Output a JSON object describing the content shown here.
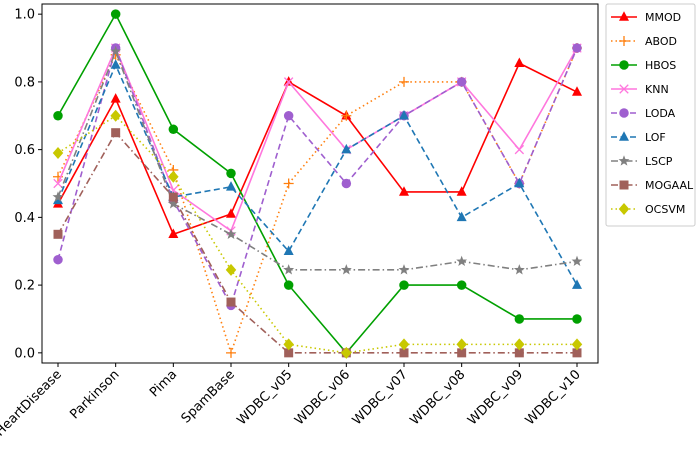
{
  "chart_data": {
    "type": "line",
    "title": "",
    "xlabel": "",
    "ylabel": "",
    "ylim": [
      -0.03,
      1.03
    ],
    "yticks": [
      "0.0",
      "0.2",
      "0.4",
      "0.6",
      "0.8",
      "1.0"
    ],
    "ytick_values": [
      0.0,
      0.2,
      0.4,
      0.6,
      0.8,
      1.0
    ],
    "categories": [
      "HeartDisease",
      "Parkinson",
      "Pima",
      "SpamBase",
      "WDBC_v05",
      "WDBC_v06",
      "WDBC_v07",
      "WDBC_v08",
      "WDBC_v09",
      "WDBC_v10"
    ],
    "legend_position": "outside-right",
    "series": [
      {
        "name": "MMOD",
        "color": "#ff0000",
        "marker": "triangle",
        "dash": "solid",
        "values": [
          0.44,
          0.75,
          0.35,
          0.41,
          0.8,
          0.7,
          0.475,
          0.475,
          0.855,
          0.77
        ]
      },
      {
        "name": "ABOD",
        "color": "#ff7f0e",
        "marker": "plus",
        "dash": "dotted",
        "values": [
          0.52,
          0.88,
          0.54,
          0.0,
          0.5,
          0.7,
          0.8,
          0.8,
          0.5,
          0.9
        ]
      },
      {
        "name": "HBOS",
        "color": "#00a000",
        "marker": "circle",
        "dash": "solid",
        "values": [
          0.7,
          1.0,
          0.66,
          0.53,
          0.2,
          0.0,
          0.2,
          0.2,
          0.1,
          0.1
        ]
      },
      {
        "name": "KNN",
        "color": "#ff77dd",
        "marker": "x",
        "dash": "solid",
        "values": [
          0.5,
          0.9,
          0.48,
          0.36,
          0.8,
          0.6,
          0.7,
          0.8,
          0.6,
          0.9
        ]
      },
      {
        "name": "LODA",
        "color": "#9f5fcf",
        "marker": "circle",
        "dash": "dashed",
        "values": [
          0.275,
          0.9,
          0.45,
          0.14,
          0.7,
          0.5,
          0.7,
          0.8,
          0.5,
          0.9
        ]
      },
      {
        "name": "LOF",
        "color": "#1f77b4",
        "marker": "triangle",
        "dash": "dashed",
        "values": [
          0.45,
          0.85,
          0.46,
          0.49,
          0.3,
          0.6,
          0.7,
          0.4,
          0.5,
          0.2
        ]
      },
      {
        "name": "LSCP",
        "color": "#808080",
        "marker": "star",
        "dash": "dashdot",
        "values": [
          0.46,
          0.89,
          0.44,
          0.35,
          0.245,
          0.245,
          0.245,
          0.27,
          0.245,
          0.27
        ]
      },
      {
        "name": "MOGAAL",
        "color": "#a0605a",
        "marker": "square",
        "dash": "dashdot",
        "values": [
          0.35,
          0.65,
          0.46,
          0.15,
          0.0,
          0.0,
          0.0,
          0.0,
          0.0,
          0.0
        ]
      },
      {
        "name": "OCSVM",
        "color": "#c8c800",
        "marker": "diamond",
        "dash": "dotted",
        "values": [
          0.59,
          0.7,
          0.52,
          0.245,
          0.025,
          0.0,
          0.025,
          0.025,
          0.025,
          0.025
        ]
      }
    ]
  }
}
